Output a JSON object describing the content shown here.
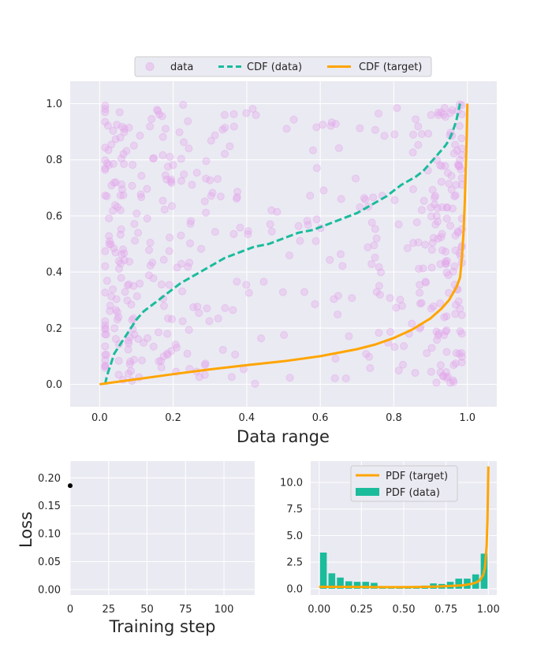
{
  "colors": {
    "scatter": "#e3a6ea",
    "cdf_data": "#1abc9c",
    "cdf_target": "#ffa500",
    "pdf_data": "#1abc9c",
    "pdf_target": "#ffa500",
    "axes_bg": "#eaeaf2"
  },
  "chart_data": [
    {
      "id": "main",
      "type": "scatter",
      "title": "",
      "xlabel": "Data range",
      "ylabel": "",
      "xlim": [
        -0.08,
        1.08
      ],
      "ylim": [
        -0.08,
        1.08
      ],
      "xticks": [
        "0.0",
        "0.2",
        "0.4",
        "0.6",
        "0.8",
        "1.0"
      ],
      "yticks": [
        "0.0",
        "0.2",
        "0.4",
        "0.6",
        "0.8",
        "1.0"
      ],
      "grid": true,
      "legend": {
        "placement": "top-center",
        "entries": [
          "data",
          "CDF (data)",
          "CDF (target)"
        ]
      },
      "scatter_density": {
        "n_points": 500,
        "x_bins": [
          0.0,
          0.1,
          0.2,
          0.3,
          0.4,
          0.5,
          0.6,
          0.7,
          0.8,
          0.9,
          1.0
        ],
        "bin_weights": [
          3.2,
          1.5,
          1.0,
          0.8,
          0.6,
          0.5,
          0.6,
          0.8,
          1.1,
          3.2
        ],
        "y_range": [
          0.0,
          1.0
        ]
      },
      "series": [
        {
          "name": "CDF (data)",
          "style": "dashed",
          "x": [
            0.015,
            0.02,
            0.03,
            0.04,
            0.06,
            0.08,
            0.1,
            0.12,
            0.15,
            0.18,
            0.22,
            0.26,
            0.3,
            0.34,
            0.38,
            0.42,
            0.46,
            0.5,
            0.54,
            0.58,
            0.62,
            0.66,
            0.7,
            0.74,
            0.78,
            0.82,
            0.86,
            0.88,
            0.9,
            0.92,
            0.94,
            0.95,
            0.96,
            0.97,
            0.975,
            0.98
          ],
          "y": [
            0.0,
            0.03,
            0.07,
            0.11,
            0.15,
            0.19,
            0.23,
            0.26,
            0.29,
            0.32,
            0.36,
            0.39,
            0.42,
            0.45,
            0.47,
            0.49,
            0.5,
            0.52,
            0.54,
            0.55,
            0.57,
            0.59,
            0.61,
            0.64,
            0.67,
            0.71,
            0.74,
            0.76,
            0.79,
            0.82,
            0.85,
            0.87,
            0.9,
            0.94,
            0.97,
            1.0
          ]
        },
        {
          "name": "CDF (target)",
          "style": "solid",
          "x": [
            0.0,
            0.1,
            0.2,
            0.3,
            0.4,
            0.5,
            0.6,
            0.7,
            0.75,
            0.8,
            0.85,
            0.9,
            0.93,
            0.95,
            0.97,
            0.98,
            0.985,
            0.99,
            0.993,
            0.996,
            0.998,
            1.0
          ],
          "y": [
            0.0,
            0.018,
            0.036,
            0.053,
            0.068,
            0.082,
            0.1,
            0.125,
            0.142,
            0.165,
            0.195,
            0.235,
            0.27,
            0.3,
            0.345,
            0.38,
            0.45,
            0.55,
            0.65,
            0.78,
            0.88,
            1.0
          ]
        }
      ]
    },
    {
      "id": "loss",
      "type": "scatter",
      "title": "",
      "xlabel": "Training step",
      "ylabel": "Loss",
      "xlim": [
        0,
        120
      ],
      "ylim": [
        -0.01,
        0.23
      ],
      "xticks": [
        "0",
        "25",
        "50",
        "75",
        "100"
      ],
      "yticks": [
        "0.00",
        "0.05",
        "0.10",
        "0.15",
        "0.20"
      ],
      "grid": true,
      "series": [
        {
          "name": "loss",
          "x": [
            0
          ],
          "y": [
            0.186
          ]
        }
      ]
    },
    {
      "id": "pdf",
      "type": "bar",
      "title": "",
      "xlabel": "",
      "ylabel": "",
      "xlim": [
        -0.05,
        1.05
      ],
      "ylim": [
        -0.6,
        12.0
      ],
      "xticks": [
        "0.00",
        "0.25",
        "0.50",
        "0.75",
        "1.00"
      ],
      "yticks": [
        "0.0",
        "2.5",
        "5.0",
        "7.5",
        "10.0"
      ],
      "grid": true,
      "legend": {
        "placement": "top-center",
        "entries": [
          "PDF (target)",
          "PDF (data)"
        ]
      },
      "bar_width": 0.04,
      "series": [
        {
          "name": "PDF (data)",
          "x": [
            0.025,
            0.075,
            0.125,
            0.175,
            0.225,
            0.275,
            0.325,
            0.375,
            0.425,
            0.475,
            0.525,
            0.575,
            0.625,
            0.675,
            0.725,
            0.775,
            0.825,
            0.875,
            0.925,
            0.975
          ],
          "values": [
            3.4,
            1.45,
            1.05,
            0.7,
            0.65,
            0.65,
            0.55,
            0.25,
            0.25,
            0.25,
            0.25,
            0.25,
            0.3,
            0.5,
            0.45,
            0.65,
            0.95,
            0.95,
            1.35,
            3.3
          ]
        },
        {
          "name": "PDF (target)",
          "x": [
            0.0,
            0.1,
            0.2,
            0.3,
            0.4,
            0.5,
            0.6,
            0.7,
            0.8,
            0.85,
            0.9,
            0.93,
            0.95,
            0.97,
            0.98,
            0.99,
            0.995,
            1.0
          ],
          "values": [
            0.18,
            0.18,
            0.18,
            0.16,
            0.15,
            0.15,
            0.17,
            0.21,
            0.28,
            0.33,
            0.45,
            0.6,
            0.8,
            1.3,
            2.0,
            4.0,
            6.5,
            11.5
          ]
        }
      ]
    }
  ]
}
